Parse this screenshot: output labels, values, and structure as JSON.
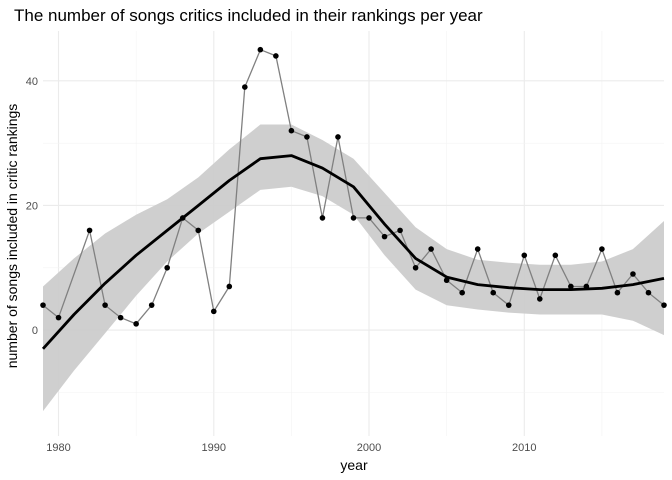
{
  "chart_data": {
    "type": "line",
    "title": "The number of songs critics included in their rankings per year",
    "xlabel": "year",
    "ylabel": "number of songs included in critic rankings",
    "xlim": [
      1979,
      2019
    ],
    "ylim": [
      -17,
      48
    ],
    "x_ticks": [
      1980,
      1990,
      2000,
      2010
    ],
    "y_ticks": [
      0,
      20,
      40
    ],
    "grid": true,
    "series": [
      {
        "values": [
          {
            "x": 1979,
            "y": 4
          },
          {
            "x": 1980,
            "y": 2
          },
          {
            "x": 1982,
            "y": 16
          },
          {
            "x": 1983,
            "y": 4
          },
          {
            "x": 1984,
            "y": 2
          },
          {
            "x": 1985,
            "y": 1
          },
          {
            "x": 1986,
            "y": 4
          },
          {
            "x": 1987,
            "y": 10
          },
          {
            "x": 1988,
            "y": 18
          },
          {
            "x": 1989,
            "y": 16
          },
          {
            "x": 1990,
            "y": 3
          },
          {
            "x": 1991,
            "y": 7
          },
          {
            "x": 1992,
            "y": 39
          },
          {
            "x": 1993,
            "y": 45
          },
          {
            "x": 1994,
            "y": 44
          },
          {
            "x": 1995,
            "y": 32
          },
          {
            "x": 1996,
            "y": 31
          },
          {
            "x": 1997,
            "y": 18
          },
          {
            "x": 1998,
            "y": 31
          },
          {
            "x": 1999,
            "y": 18
          },
          {
            "x": 2000,
            "y": 18
          },
          {
            "x": 2001,
            "y": 15
          },
          {
            "x": 2002,
            "y": 16
          },
          {
            "x": 2003,
            "y": 10
          },
          {
            "x": 2004,
            "y": 13
          },
          {
            "x": 2005,
            "y": 8
          },
          {
            "x": 2006,
            "y": 6
          },
          {
            "x": 2007,
            "y": 13
          },
          {
            "x": 2008,
            "y": 6
          },
          {
            "x": 2009,
            "y": 4
          },
          {
            "x": 2010,
            "y": 12
          },
          {
            "x": 2011,
            "y": 5
          },
          {
            "x": 2012,
            "y": 12
          },
          {
            "x": 2013,
            "y": 7
          },
          {
            "x": 2014,
            "y": 7
          },
          {
            "x": 2015,
            "y": 13
          },
          {
            "x": 2016,
            "y": 6
          },
          {
            "x": 2017,
            "y": 9
          },
          {
            "x": 2018,
            "y": 6
          },
          {
            "x": 2019,
            "y": 4
          }
        ],
        "color": "#808080"
      }
    ],
    "smooth": {
      "x": [
        1979,
        1981,
        1983,
        1985,
        1987,
        1989,
        1991,
        1993,
        1995,
        1997,
        1999,
        2001,
        2003,
        2005,
        2007,
        2009,
        2011,
        2013,
        2015,
        2017,
        2019
      ],
      "fit": [
        -3,
        2.5,
        7.5,
        12,
        16,
        20,
        24,
        27.5,
        28,
        26,
        23,
        17,
        11.5,
        8.5,
        7.3,
        6.8,
        6.5,
        6.5,
        6.7,
        7.3,
        8.3
      ],
      "lower": [
        -13,
        -6.5,
        -0.5,
        5.5,
        11,
        15.5,
        19,
        22.5,
        23,
        21.5,
        18.5,
        12,
        6.5,
        4,
        3.3,
        2.8,
        2.5,
        2.5,
        2.5,
        1.5,
        -0.8
      ],
      "upper": [
        7,
        11.5,
        15.5,
        18.5,
        21,
        24.5,
        29,
        33,
        33,
        30.5,
        27.5,
        22,
        16.5,
        13,
        11.3,
        10.8,
        10.5,
        10.5,
        11,
        13,
        17.5
      ],
      "line_color": "#000000",
      "band_color": "#cccccc"
    }
  }
}
